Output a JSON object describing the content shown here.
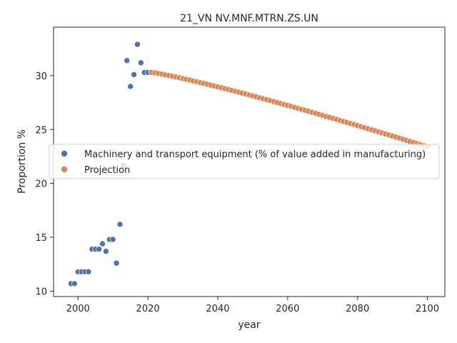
{
  "chart_data": {
    "type": "scatter",
    "title": "21_VN NV.MNF.MTRN.ZS.UN",
    "xlabel": "year",
    "ylabel": "Proportion %",
    "xlim": [
      1993,
      2105
    ],
    "ylim": [
      9.5,
      34.5
    ],
    "xticks": [
      2000,
      2020,
      2040,
      2060,
      2080,
      2100
    ],
    "yticks": [
      10,
      15,
      20,
      25,
      30
    ],
    "grid": false,
    "legend_position": "center-left",
    "colors": {
      "historical": "#4c72b0",
      "projection": "#dd8452"
    },
    "series": [
      {
        "name": "Machinery and transport equipment (% of value added in manufacturing)",
        "color": "#4c72b0",
        "x": [
          1998,
          1999,
          2000,
          2001,
          2002,
          2003,
          2004,
          2005,
          2006,
          2007,
          2008,
          2009,
          2010,
          2011,
          2012,
          2013,
          2014,
          2015,
          2016,
          2017,
          2018,
          2019,
          2020
        ],
        "y": [
          10.7,
          10.7,
          11.8,
          11.8,
          11.8,
          11.8,
          13.9,
          13.9,
          13.9,
          14.4,
          13.7,
          14.8,
          14.8,
          12.6,
          16.2,
          21.7,
          31.4,
          29.0,
          30.1,
          32.9,
          31.2,
          30.3,
          30.3
        ]
      },
      {
        "name": "Projection",
        "color": "#dd8452",
        "projection": {
          "start_year": 2021,
          "end_year": 2100,
          "start_value": 30.3,
          "end_value": 23.4,
          "curve_exponent": 1.15
        }
      }
    ]
  }
}
